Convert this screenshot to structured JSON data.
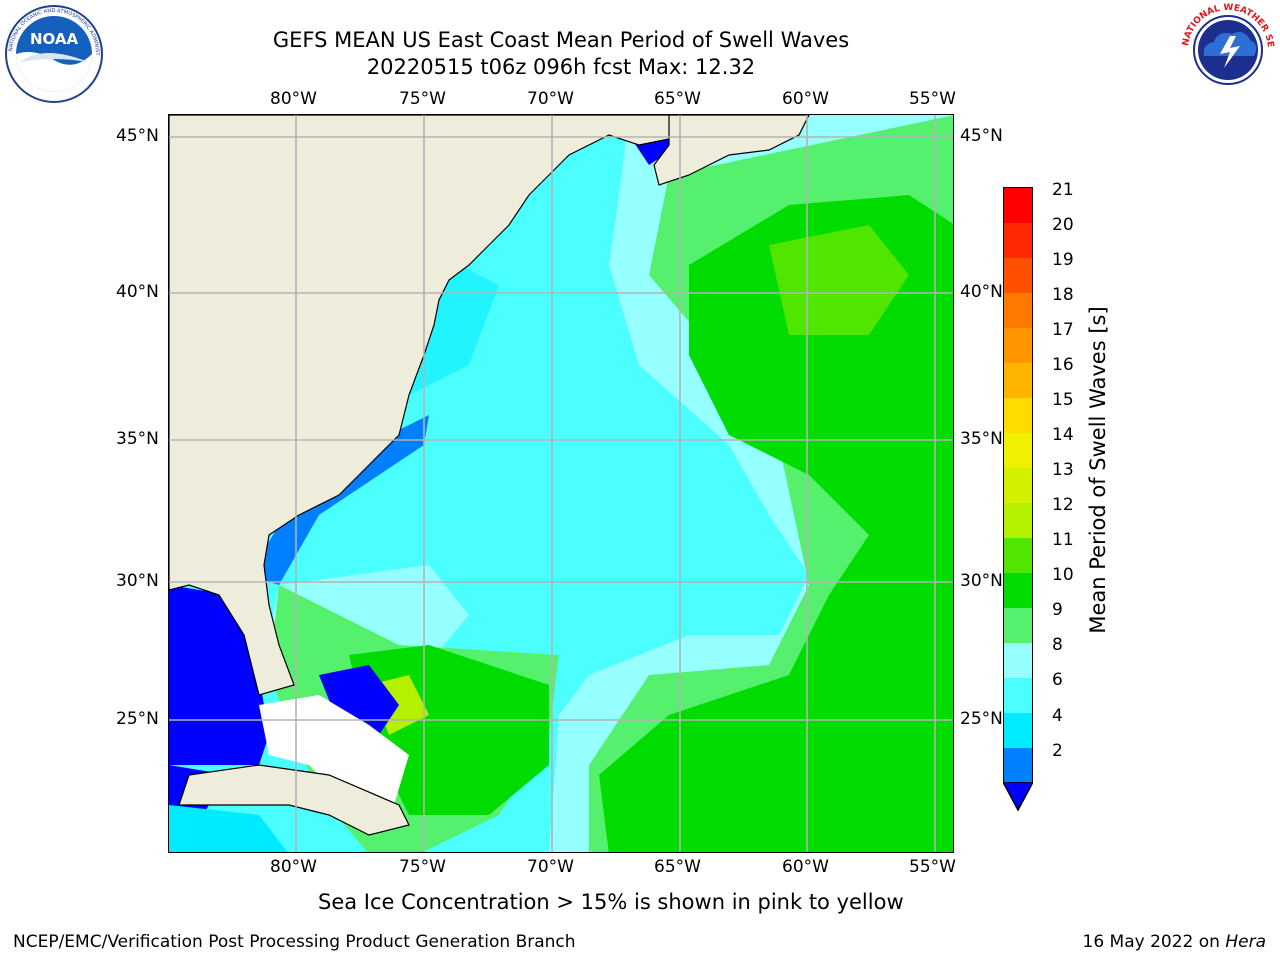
{
  "header": {
    "title_line1": "GEFS MEAN US East Coast Mean Period of Swell Waves",
    "title_line2": "20220515 t06z 096h fcst   Max: 12.32"
  },
  "logos": {
    "left": {
      "icon": "noaa-logo-icon",
      "text": "NOAA",
      "ring_text": "NATIONAL OCEANIC AND ATMOSPHERIC ADMINISTRATION · U.S. DEPARTMENT OF COMMERCE"
    },
    "right": {
      "icon": "nws-logo-icon",
      "ring_text": "NATIONAL WEATHER SERVICE"
    }
  },
  "map": {
    "lon_labels": [
      "80°W",
      "75°W",
      "70°W",
      "65°W",
      "60°W",
      "55°W"
    ],
    "lat_labels": [
      "45°N",
      "40°N",
      "35°N",
      "30°N",
      "25°N"
    ],
    "colors": {
      "land": "#eeeddc",
      "grid": "#b3b3b3",
      "coast": "#000000"
    }
  },
  "colorbar": {
    "label": "Mean Period of Swell Waves [s]",
    "ticks": [
      "21",
      "20",
      "19",
      "18",
      "17",
      "16",
      "15",
      "14",
      "13",
      "12",
      "11",
      "10",
      "9",
      "8",
      "6",
      "4",
      "2"
    ],
    "colors_top_to_bottom": [
      "#ff0000",
      "#ff2800",
      "#ff5000",
      "#ff7800",
      "#ff9600",
      "#ffb400",
      "#ffdc00",
      "#f0f000",
      "#d2f000",
      "#b4f000",
      "#50e600",
      "#00dc00",
      "#55f06e",
      "#96ffff",
      "#4bffff",
      "#00ebff",
      "#0080ff"
    ],
    "extend_color": "#0000ff"
  },
  "footer": {
    "subtitle": "Sea Ice Concentration > 15% is shown in pink to yellow",
    "credit": "NCEP/EMC/Verification Post Processing Product Generation Branch",
    "date": "16 May 2022 on ",
    "host": "Hera"
  }
}
